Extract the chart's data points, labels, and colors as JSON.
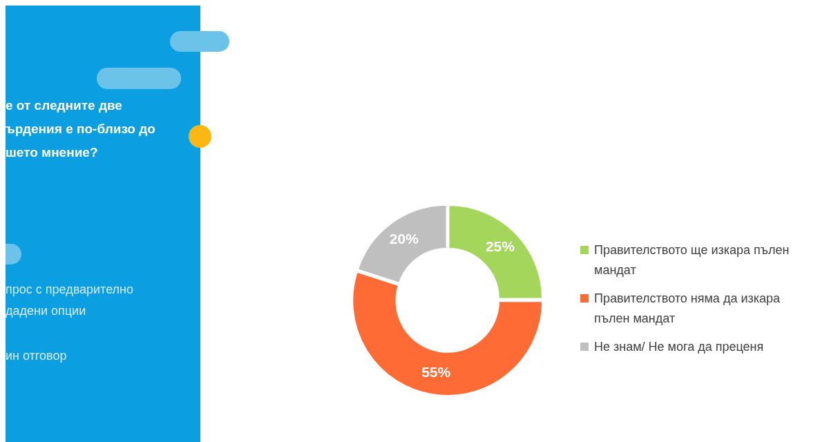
{
  "chart_data": {
    "type": "donut",
    "title": "е от следните две ърдения е по-близо до шето мнение?",
    "annotations": [
      "прос с предварително дадени опции",
      "ин отговор"
    ],
    "categories": [
      "Правителството ще изкара пълен мандат",
      "Правителството няма да изкара пълен мандат",
      "Не знам/ Не мога да преценя"
    ],
    "values": [
      25,
      55,
      20
    ],
    "colors": [
      "#a5d65c",
      "#ff6b35",
      "#bfbfbf"
    ],
    "value_labels": [
      "25%",
      "55%",
      "20%"
    ],
    "legend": "right"
  }
}
